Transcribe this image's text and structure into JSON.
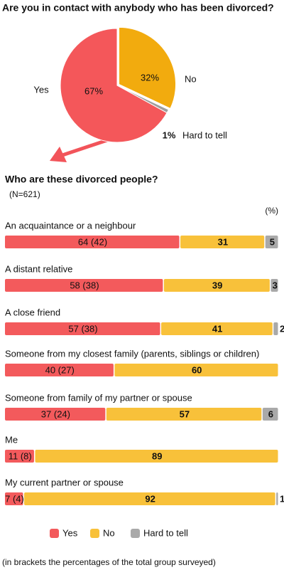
{
  "chart_data": [
    {
      "type": "pie",
      "title": "Are you in contact with anybody who has been divorced?",
      "categories": [
        "Yes",
        "No",
        "Hard to tell"
      ],
      "values": [
        67,
        32,
        1
      ],
      "value_labels": [
        "67%",
        "32%",
        "1%"
      ],
      "colors": [
        "#f4575a",
        "#f2ab0e",
        "#9e9e9e"
      ]
    },
    {
      "type": "stacked-bar-horizontal",
      "title": "Who are these divorced people?",
      "subtitle": "(N=621)",
      "unit": "(%)",
      "categories": [
        "An acquaintance or a neighbour",
        "A distant relative",
        "A close friend",
        "Someone from my closest family (parents, siblings or children)",
        "Someone from family of my partner or spouse",
        "Me",
        "My current partner or spouse"
      ],
      "series": [
        {
          "name": "Yes",
          "color": "#f35a5c",
          "values": [
            64,
            58,
            57,
            40,
            37,
            11,
            7
          ],
          "value_labels": [
            "64 (42)",
            "58 (38)",
            "57 (38)",
            "40 (27)",
            "37 (24)",
            "11 (8)",
            "7 (4)"
          ]
        },
        {
          "name": "No",
          "color": "#f8c13a",
          "values": [
            31,
            39,
            41,
            60,
            57,
            89,
            92
          ]
        },
        {
          "name": "Hard to tell",
          "color": "#a9a9a9",
          "values": [
            5,
            3,
            2,
            null,
            6,
            null,
            1
          ]
        }
      ],
      "xlim": [
        0,
        100
      ],
      "footnote": "(in brackets the percentages of the total group surveyed)"
    }
  ]
}
